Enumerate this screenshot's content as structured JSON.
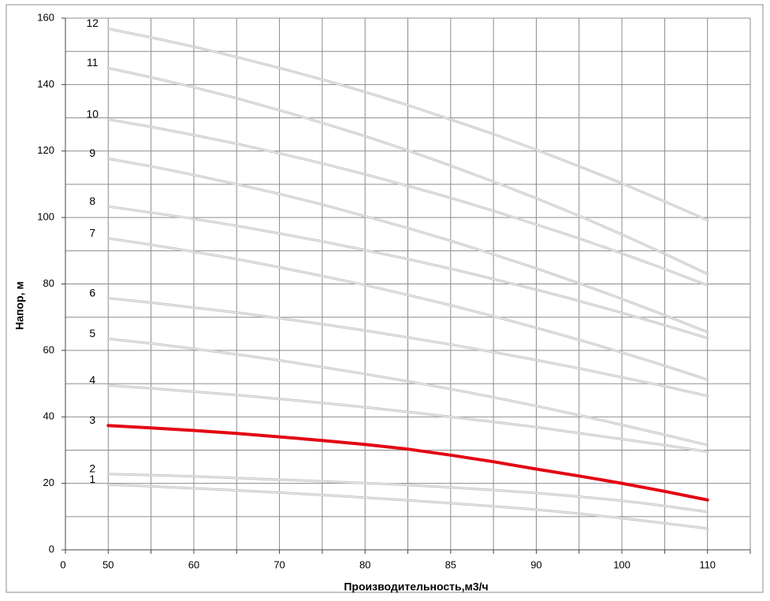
{
  "chart_data": {
    "type": "line",
    "x_label": "Производительность,м3/ч",
    "y_label": "Напор, м",
    "categories": [
      "0",
      "50",
      null,
      "60",
      null,
      "70",
      null,
      "80",
      null,
      "85",
      null,
      "90",
      null,
      "100",
      null,
      "110",
      null
    ],
    "ylim": [
      0,
      160
    ],
    "yticks": [
      0,
      20,
      40,
      60,
      80,
      100,
      120,
      140,
      160
    ],
    "grid": true,
    "series": [
      {
        "name": "1",
        "color": "#c4c4c4",
        "values": [
          null,
          19.6,
          19.1,
          18.5,
          17.9,
          17.2,
          16.5,
          15.7,
          14.9,
          14.0,
          13.1,
          12.1,
          10.9,
          9.5,
          8.0,
          6.4,
          null
        ]
      },
      {
        "name": "2",
        "color": "#c4c4c4",
        "values": [
          null,
          22.8,
          22.5,
          22.1,
          21.6,
          21.1,
          20.6,
          20.1,
          19.5,
          18.8,
          18.0,
          17.1,
          16.0,
          14.8,
          13.2,
          11.4,
          null
        ]
      },
      {
        "name": "3",
        "color": "#e30613",
        "values": [
          null,
          37.4,
          36.7,
          35.9,
          35.0,
          34.0,
          32.9,
          31.7,
          30.3,
          28.5,
          26.5,
          24.3,
          22.2,
          20.0,
          17.6,
          15.0,
          null
        ]
      },
      {
        "name": "4",
        "color": "#c4c4c4",
        "values": [
          null,
          49.5,
          48.6,
          47.6,
          46.6,
          45.4,
          44.2,
          42.9,
          41.5,
          40.0,
          38.5,
          36.9,
          35.1,
          33.3,
          31.5,
          29.5,
          null
        ]
      },
      {
        "name": "5",
        "color": "#c4c4c4",
        "values": [
          null,
          63.5,
          62.1,
          60.5,
          58.8,
          57.0,
          55.0,
          52.9,
          50.7,
          48.4,
          45.9,
          43.3,
          40.5,
          37.6,
          34.6,
          31.5,
          null
        ]
      },
      {
        "name": "6",
        "color": "#c4c4c4",
        "values": [
          null,
          75.7,
          74.4,
          72.9,
          71.4,
          69.7,
          67.9,
          66.0,
          63.9,
          61.8,
          59.5,
          57.1,
          54.6,
          51.9,
          49.2,
          46.3,
          null
        ]
      },
      {
        "name": "7",
        "color": "#c4c4c4",
        "values": [
          null,
          93.7,
          91.8,
          89.7,
          87.5,
          85.0,
          82.4,
          79.7,
          76.7,
          73.6,
          70.3,
          66.8,
          63.2,
          59.4,
          55.4,
          51.2,
          null
        ]
      },
      {
        "name": "8",
        "color": "#c4c4c4",
        "values": [
          null,
          103.3,
          101.5,
          99.6,
          97.5,
          95.2,
          92.8,
          90.2,
          87.5,
          84.6,
          81.5,
          78.3,
          74.9,
          71.3,
          67.6,
          63.7,
          null
        ]
      },
      {
        "name": "9",
        "color": "#c4c4c4",
        "values": [
          null,
          117.7,
          115.4,
          112.8,
          110.0,
          107.1,
          103.9,
          100.4,
          96.8,
          93.0,
          88.9,
          84.7,
          80.2,
          75.5,
          70.6,
          65.5,
          null
        ]
      },
      {
        "name": "10",
        "color": "#c4c4c4",
        "values": [
          null,
          129.5,
          127.3,
          124.8,
          122.2,
          119.3,
          116.3,
          113.0,
          109.5,
          105.9,
          102.0,
          97.9,
          93.7,
          89.2,
          84.5,
          79.6,
          null
        ]
      },
      {
        "name": "11",
        "color": "#c4c4c4",
        "values": [
          null,
          145.0,
          142.2,
          139.2,
          135.9,
          132.3,
          128.5,
          124.5,
          120.2,
          115.6,
          110.8,
          105.8,
          100.5,
          94.9,
          89.1,
          83.0,
          null
        ]
      },
      {
        "name": "12",
        "color": "#c4c4c4",
        "values": [
          null,
          156.8,
          154.2,
          151.4,
          148.3,
          145.0,
          141.5,
          137.8,
          133.8,
          129.5,
          125.1,
          120.4,
          115.4,
          110.3,
          104.8,
          99.2,
          null
        ]
      }
    ]
  }
}
